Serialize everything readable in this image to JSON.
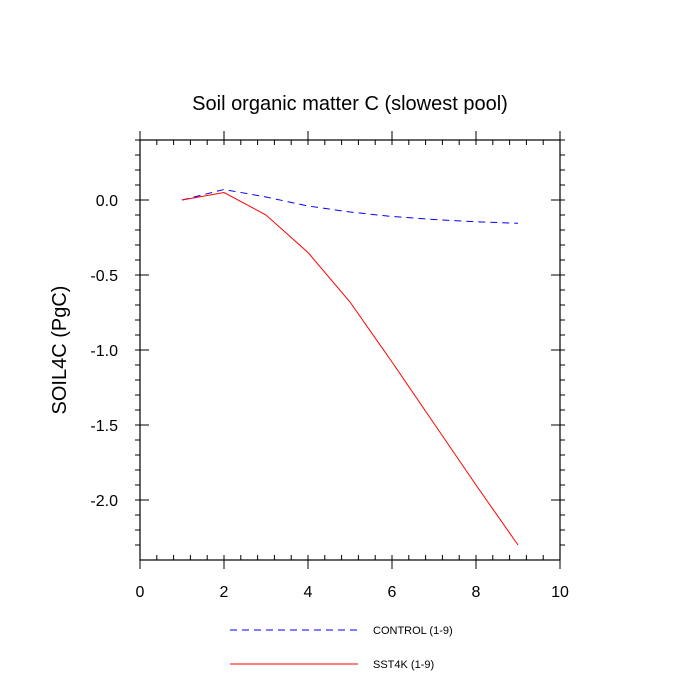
{
  "chart_data": {
    "type": "line",
    "title": "Soil organic matter C (slowest pool)",
    "xlabel": "",
    "ylabel": "SOIL4C  (PgC)",
    "xlim": [
      0,
      10
    ],
    "ylim": [
      -2.4,
      0.4
    ],
    "x_ticks": [
      0,
      2,
      4,
      6,
      8,
      10
    ],
    "x_tick_labels": [
      "0",
      "2",
      "4",
      "6",
      "8",
      "10"
    ],
    "x_minor_step": 0.4,
    "y_ticks": [
      0.0,
      -0.5,
      -1.0,
      -1.5,
      -2.0
    ],
    "y_tick_labels": [
      "0.0",
      "-0.5",
      "-1.0",
      "-1.5",
      "-2.0"
    ],
    "y_minor_step": 0.1,
    "legend_position": "bottom",
    "series": [
      {
        "name": "CONTROL (1-9)",
        "color": "#0000ff",
        "style": "dashed",
        "x": [
          1,
          2,
          3,
          4,
          5,
          6,
          7,
          8,
          9
        ],
        "values": [
          0.0,
          0.07,
          0.02,
          -0.04,
          -0.08,
          -0.11,
          -0.13,
          -0.145,
          -0.155
        ]
      },
      {
        "name": "SST4K (1-9)",
        "color": "#ff0000",
        "style": "solid",
        "x": [
          1,
          2,
          3,
          4,
          5,
          6,
          7,
          8,
          9
        ],
        "values": [
          0.0,
          0.05,
          -0.1,
          -0.35,
          -0.68,
          -1.08,
          -1.49,
          -1.9,
          -2.3
        ]
      }
    ]
  }
}
